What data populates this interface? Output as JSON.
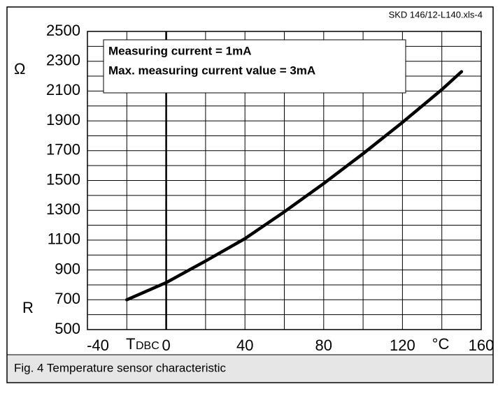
{
  "chart_data": {
    "type": "line",
    "source": "SKD 146/12-L140.xls-4",
    "caption": "Fig. 4 Temperature sensor characteristic",
    "annotations": [
      "Measuring current = 1mA",
      "Max. measuring current value = 3mA"
    ],
    "y_label_top": "Ω",
    "y_label": "R",
    "x_label": {
      "symbol": "T",
      "subscript": "DBC"
    },
    "x_unit": "°C",
    "x": [
      -20,
      0,
      20,
      40,
      60,
      80,
      100,
      120,
      140,
      150
    ],
    "series": [
      {
        "name": "R",
        "color": "#000000",
        "values": [
          700,
          815,
          960,
          1110,
          1290,
          1480,
          1680,
          1890,
          2110,
          2230
        ]
      }
    ],
    "xlim": [
      -40,
      160
    ],
    "xticks": [
      -40,
      0,
      40,
      80,
      120,
      160
    ],
    "xgrid": [
      -20,
      0,
      20,
      40,
      60,
      80,
      100,
      120,
      140
    ],
    "ylim": [
      500,
      2500
    ],
    "yticks": [
      500,
      700,
      900,
      1100,
      1300,
      1500,
      1700,
      1900,
      2100,
      2300,
      2500
    ],
    "ygrid": [
      600,
      700,
      800,
      900,
      1000,
      1100,
      1200,
      1300,
      1400,
      1500,
      1600,
      1700,
      1800,
      1900,
      2000,
      2100,
      2200,
      2300,
      2400
    ],
    "grid": true
  }
}
